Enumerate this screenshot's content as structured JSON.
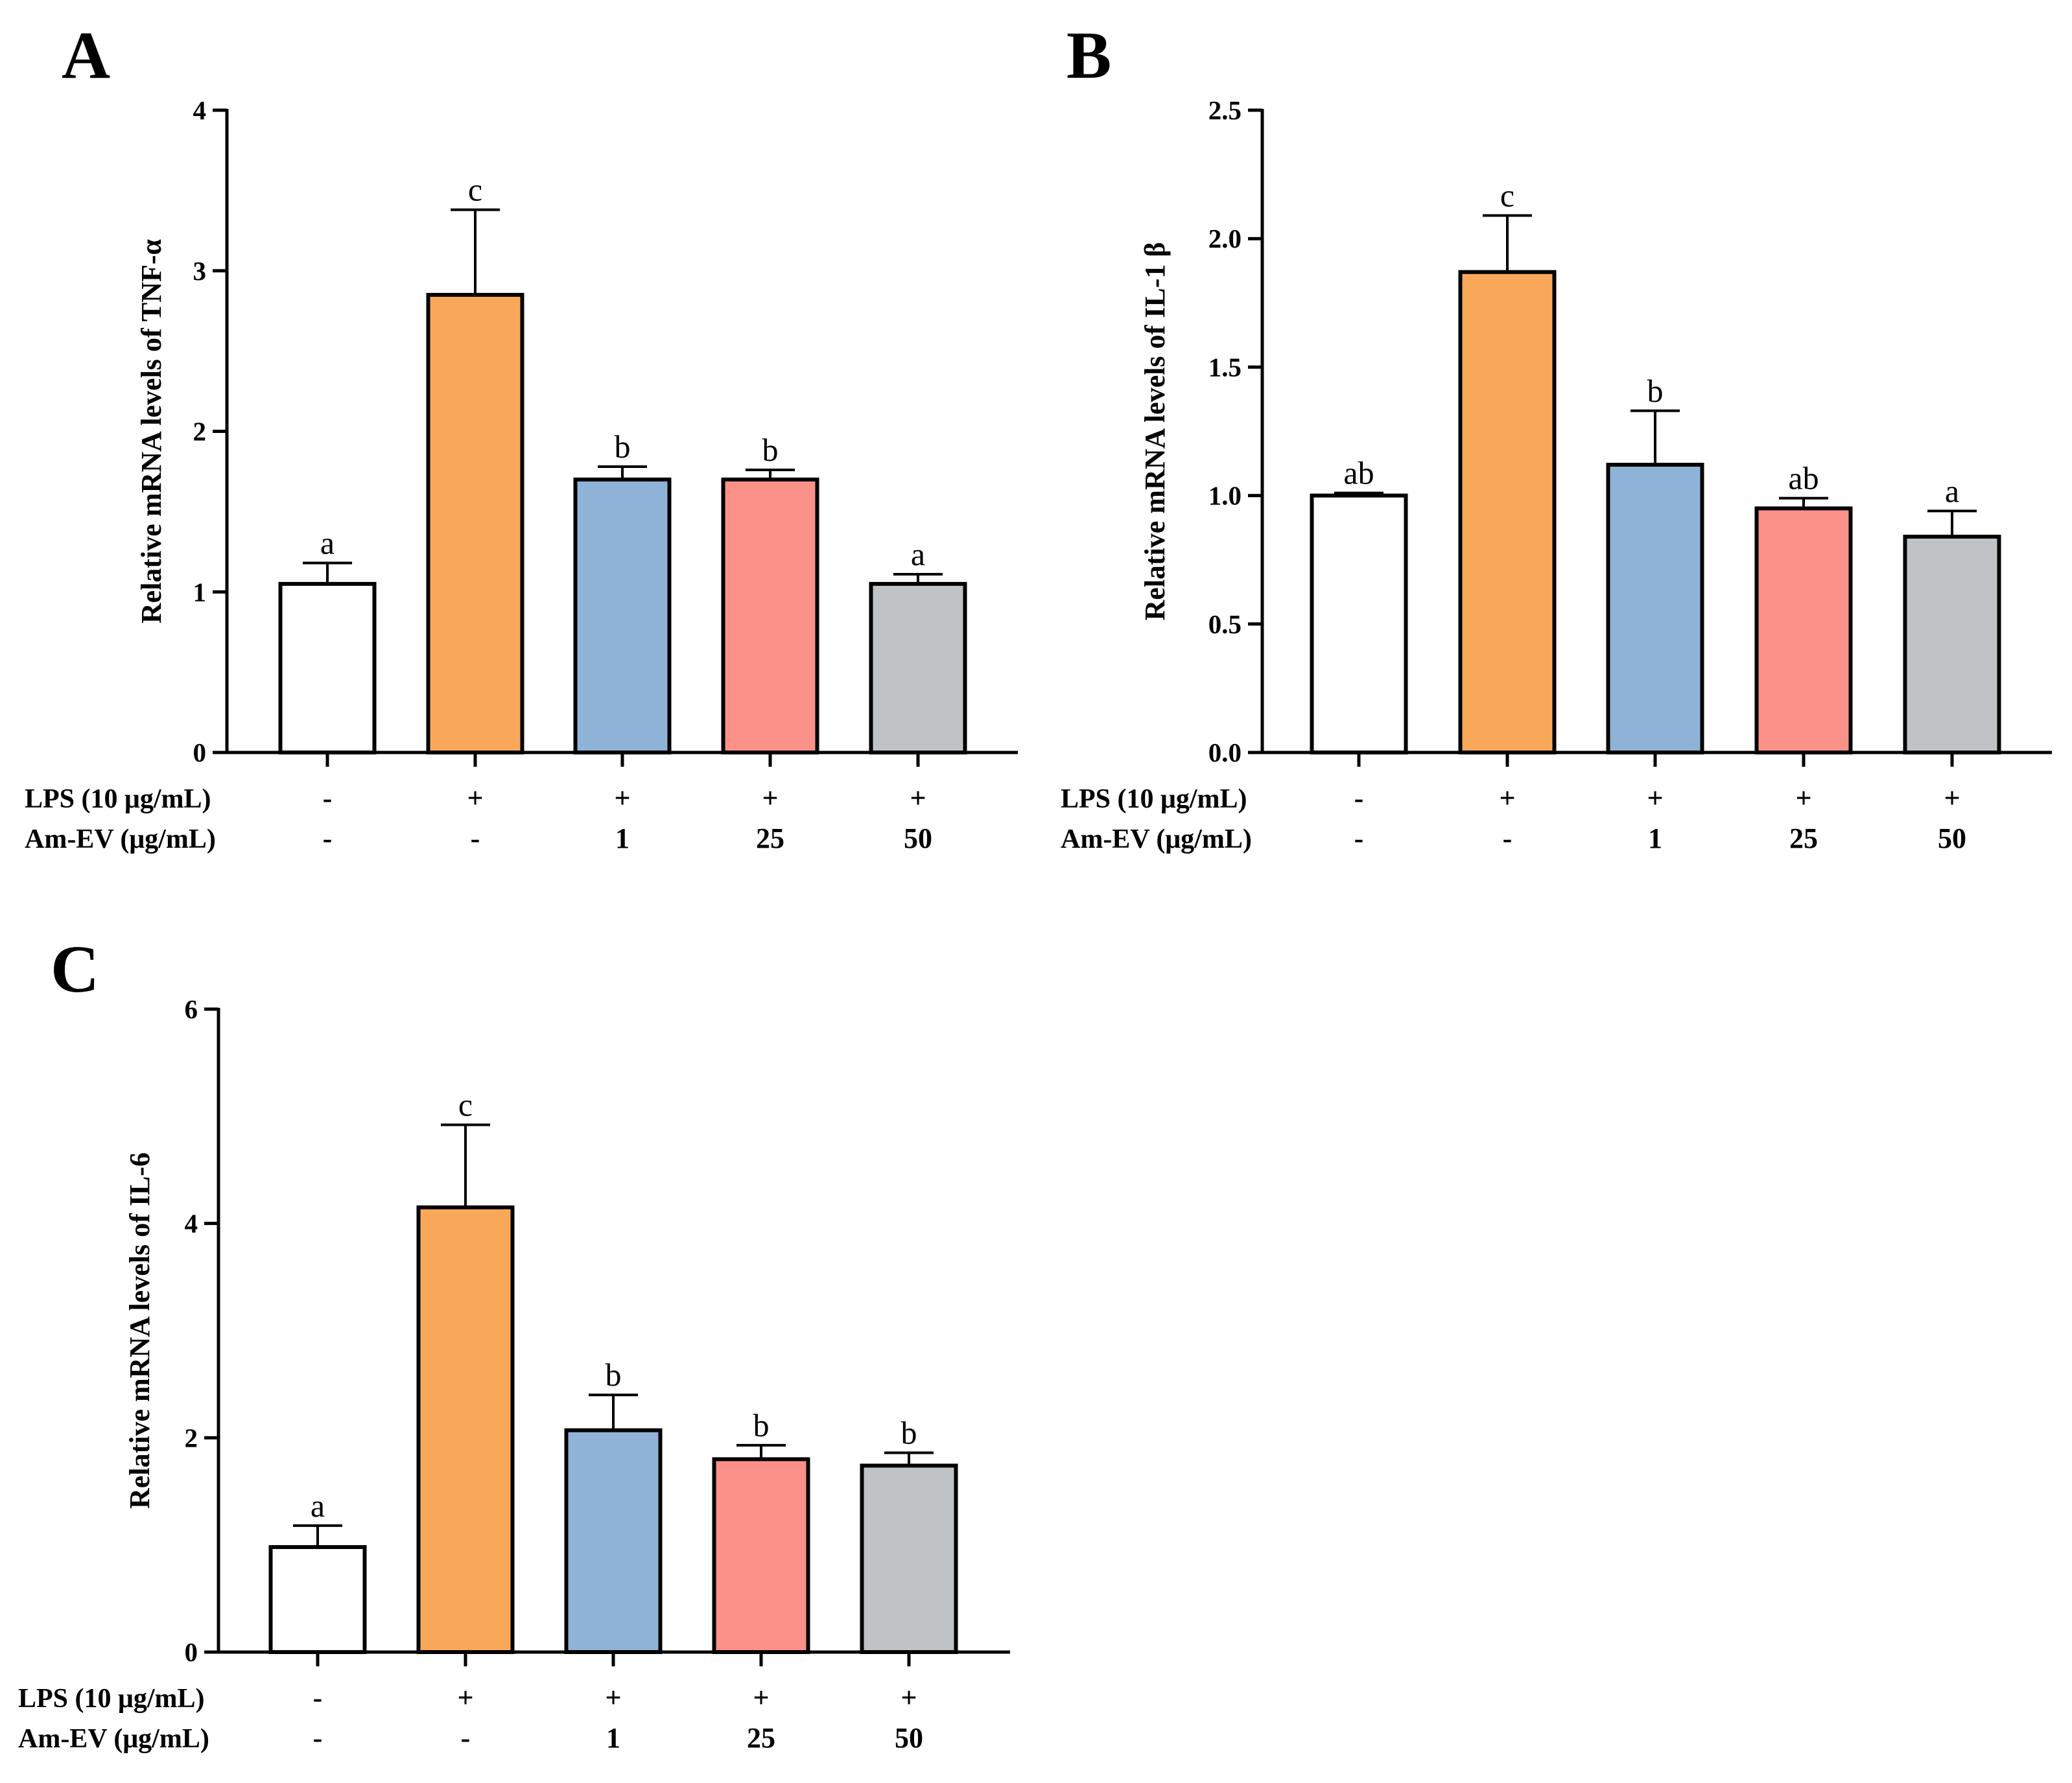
{
  "chart_data": [
    {
      "panel": "A",
      "type": "bar",
      "ylabel": "Relative mRNA levels of TNF-α",
      "ylim": [
        0,
        4
      ],
      "yticks": [
        "0",
        "1",
        "2",
        "3",
        "4"
      ],
      "row_labels": [
        "LPS (10 μg/mL)",
        "Am-EV (μg/mL)"
      ],
      "lps": [
        "-",
        "+",
        "+",
        "+",
        "+"
      ],
      "amev": [
        "-",
        "-",
        "1",
        "25",
        "50"
      ],
      "values": [
        1.05,
        2.85,
        1.7,
        1.7,
        1.05
      ],
      "errors": [
        0.13,
        0.53,
        0.08,
        0.06,
        0.06
      ],
      "significance": [
        "a",
        "c",
        "b",
        "b",
        "a"
      ],
      "colors": [
        "#ffffff",
        "#f9a85a",
        "#8fb3d7",
        "#fb9189",
        "#bfc3c5"
      ]
    },
    {
      "panel": "B",
      "type": "bar",
      "ylabel": "Relative mRNA levels of IL-1 β",
      "ylim": [
        0,
        2.5
      ],
      "yticks": [
        "0.0",
        "0.5",
        "1.0",
        "1.5",
        "2.0",
        "2.5"
      ],
      "row_labels": [
        "LPS (10 μg/mL)",
        "Am-EV (μg/mL)"
      ],
      "lps": [
        "-",
        "+",
        "+",
        "+",
        "+"
      ],
      "amev": [
        "-",
        "-",
        "1",
        "25",
        "50"
      ],
      "values": [
        1.0,
        1.87,
        1.12,
        0.95,
        0.84
      ],
      "errors": [
        0.01,
        0.22,
        0.21,
        0.04,
        0.1
      ],
      "significance": [
        "ab",
        "c",
        "b",
        "ab",
        "a"
      ],
      "colors": [
        "#ffffff",
        "#f9a85a",
        "#8fb3d7",
        "#fb9189",
        "#bfc3c5"
      ]
    },
    {
      "panel": "C",
      "type": "bar",
      "ylabel": "Relative mRNA levels of IL-6",
      "ylim": [
        0,
        6
      ],
      "yticks": [
        "0",
        "2",
        "4",
        "6"
      ],
      "row_labels": [
        "LPS (10 μg/mL)",
        "Am-EV (μg/mL)"
      ],
      "lps": [
        "-",
        "+",
        "+",
        "+",
        "+"
      ],
      "amev": [
        "-",
        "-",
        "1",
        "25",
        "50"
      ],
      "values": [
        0.98,
        4.15,
        2.07,
        1.8,
        1.74
      ],
      "errors": [
        0.2,
        0.77,
        0.33,
        0.13,
        0.12
      ],
      "significance": [
        "a",
        "c",
        "b",
        "b",
        "b"
      ],
      "colors": [
        "#ffffff",
        "#f9a85a",
        "#8fb3d7",
        "#fb9189",
        "#bfc3c5"
      ]
    }
  ]
}
